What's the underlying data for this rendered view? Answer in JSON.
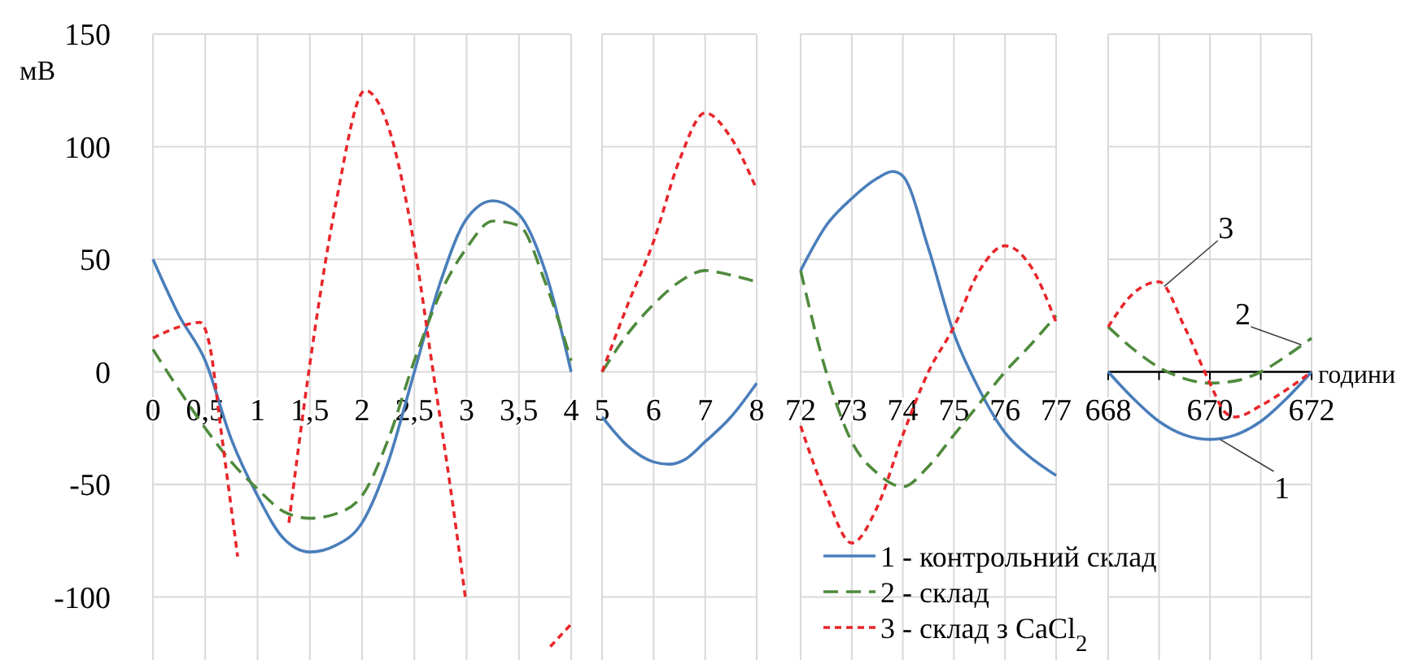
{
  "chart_data": [
    {
      "type": "line",
      "ylabel": "мВ",
      "xlim": [
        0,
        4
      ],
      "xticks": [
        0,
        {
          "value": 0.5,
          "label": "0,5"
        },
        1,
        {
          "value": 1.5,
          "label": "1,5"
        },
        2,
        {
          "value": 2.5,
          "label": "2,5"
        },
        3,
        {
          "value": 3.5,
          "label": "3,5"
        },
        4
      ],
      "ylim": [
        -133,
        150
      ],
      "yticks": [
        -100,
        -50,
        0,
        50,
        100,
        150
      ],
      "grid": true,
      "series": [
        {
          "color": "#4a7ebb",
          "line_style": "solid",
          "x": [
            0,
            0.25,
            0.5,
            0.75,
            1,
            1.25,
            1.5,
            1.75,
            2,
            2.25,
            2.5,
            2.75,
            3,
            3.25,
            3.5,
            3.75,
            4
          ],
          "values": [
            50,
            25,
            5,
            -30,
            -55,
            -74,
            -80,
            -77,
            -67,
            -40,
            0,
            40,
            68,
            76,
            70,
            45,
            0
          ]
        },
        {
          "color": "#4f8a3c",
          "line_style": "dashed",
          "x": [
            0,
            0.25,
            0.5,
            0.75,
            1,
            1.25,
            1.5,
            1.75,
            2,
            2.25,
            2.5,
            2.75,
            3,
            3.25,
            3.5,
            3.75,
            4
          ],
          "values": [
            10,
            -8,
            -25,
            -40,
            -52,
            -62,
            -65,
            -63,
            -55,
            -30,
            5,
            35,
            55,
            67,
            65,
            40,
            5
          ]
        },
        {
          "color": "#e8262a",
          "line_style": "dotted",
          "x": [
            0,
            0.25,
            0.45,
            0.55,
            0.64,
            0.81,
            0.89,
            1.0,
            1.18,
            1.3,
            1.49,
            1.75,
            2.03,
            2.25,
            2.5,
            2.68,
            2.85,
            2.99,
            3.3,
            3.45,
            3.6,
            3.8,
            4
          ],
          "values": [
            15,
            20,
            22,
            10,
            -22,
            -82,
            null,
            null,
            null,
            -67,
            0,
            75,
            125,
            109,
            56,
            0,
            -53,
            -101,
            null,
            null,
            null,
            -122,
            -112
          ]
        }
      ]
    },
    {
      "type": "line",
      "xlim": [
        5,
        8
      ],
      "xticks": [
        5,
        6,
        7,
        8
      ],
      "ylim": [
        -133,
        150
      ],
      "yticks": [
        -100,
        -50,
        0,
        50,
        100,
        150
      ],
      "grid": true,
      "tick_labels": "x",
      "series": [
        {
          "color": "#4a7ebb",
          "line_style": "solid",
          "x": [
            5,
            5.5,
            6,
            6.3,
            6.6,
            7,
            7.5,
            8
          ],
          "values": [
            -20,
            -33,
            -40,
            -41,
            -39,
            -31,
            -20,
            -5
          ]
        },
        {
          "color": "#4f8a3c",
          "line_style": "dashed",
          "x": [
            5,
            5.5,
            6,
            6.5,
            7,
            7.5,
            8
          ],
          "values": [
            0,
            17,
            30,
            40,
            45,
            43,
            40
          ]
        },
        {
          "color": "#e8262a",
          "line_style": "dotted",
          "x": [
            5,
            5.5,
            6,
            6.5,
            7,
            7.5,
            8
          ],
          "values": [
            0,
            30,
            58,
            94,
            115,
            104,
            81
          ]
        }
      ]
    },
    {
      "type": "line",
      "xlim": [
        72,
        77
      ],
      "xticks": [
        72,
        73,
        74,
        75,
        76,
        77
      ],
      "ylim": [
        -133,
        150
      ],
      "yticks": [
        -100,
        -50,
        0,
        50,
        100,
        150
      ],
      "grid": true,
      "tick_labels": "x",
      "legend": "bottom right",
      "series": [
        {
          "name": "1 - контрольний склад",
          "color": "#4a7ebb",
          "line_style": "solid",
          "x": [
            72,
            72.5,
            73,
            73.5,
            73.8,
            74,
            74.5,
            75,
            75.5,
            76,
            76.5,
            77
          ],
          "values": [
            45,
            65,
            77,
            86,
            89,
            87,
            55,
            17,
            -8,
            -27,
            -38,
            -46
          ]
        },
        {
          "name": "2 - склад",
          "color": "#4f8a3c",
          "line_style": "dashed",
          "x": [
            72,
            72.5,
            73,
            73.5,
            74,
            74.5,
            75,
            75.5,
            76,
            76.5,
            77
          ],
          "values": [
            45,
            0,
            -31,
            -45,
            -51,
            -42,
            -28,
            -14,
            0,
            12,
            25
          ]
        },
        {
          "name": "3 - склад з CaCl$_{2}$",
          "color": "#e8262a",
          "line_style": "dotted",
          "x": [
            72,
            72.5,
            73,
            73.5,
            74,
            74.5,
            75,
            75.5,
            76,
            76.5,
            77
          ],
          "values": [
            -24,
            -55,
            -76,
            -60,
            -28,
            0,
            20,
            45,
            56,
            47,
            22
          ]
        }
      ]
    },
    {
      "type": "line",
      "xlabel": "години",
      "xlim": [
        668,
        672
      ],
      "xticks": [
        668,
        {
          "value": 669,
          "label": null
        },
        670,
        {
          "value": 671,
          "label": null
        },
        672
      ],
      "ylim": [
        -133,
        150
      ],
      "yticks": [
        -100,
        -50,
        0,
        50,
        100,
        150
      ],
      "grid": true,
      "tick_labels": "x",
      "annotations": [
        {
          "text": "3",
          "x": 669.1,
          "y": 38
        },
        {
          "text": "2",
          "x": 671.8,
          "y": 12
        },
        {
          "text": "1",
          "x": 670.2,
          "y": -30
        }
      ],
      "series": [
        {
          "color": "#4a7ebb",
          "line_style": "solid",
          "x": [
            668,
            668.5,
            669,
            669.5,
            670,
            670.5,
            671,
            671.5,
            672
          ],
          "values": [
            0,
            -12,
            -22,
            -28,
            -30,
            -28,
            -22,
            -12,
            0
          ]
        },
        {
          "color": "#4f8a3c",
          "line_style": "dashed",
          "x": [
            668,
            668.5,
            669,
            669.5,
            670,
            670.5,
            671,
            671.5,
            672
          ],
          "values": [
            20,
            10,
            2,
            -3,
            -5,
            -4,
            0,
            7,
            15
          ]
        },
        {
          "color": "#e8262a",
          "line_style": "dotted",
          "x": [
            668,
            668.5,
            669,
            669.5,
            670,
            670.3,
            670.5,
            671,
            671.5,
            672
          ],
          "values": [
            20,
            35,
            40,
            20,
            -5,
            -18,
            -20,
            -15,
            -8,
            0
          ]
        }
      ]
    }
  ]
}
